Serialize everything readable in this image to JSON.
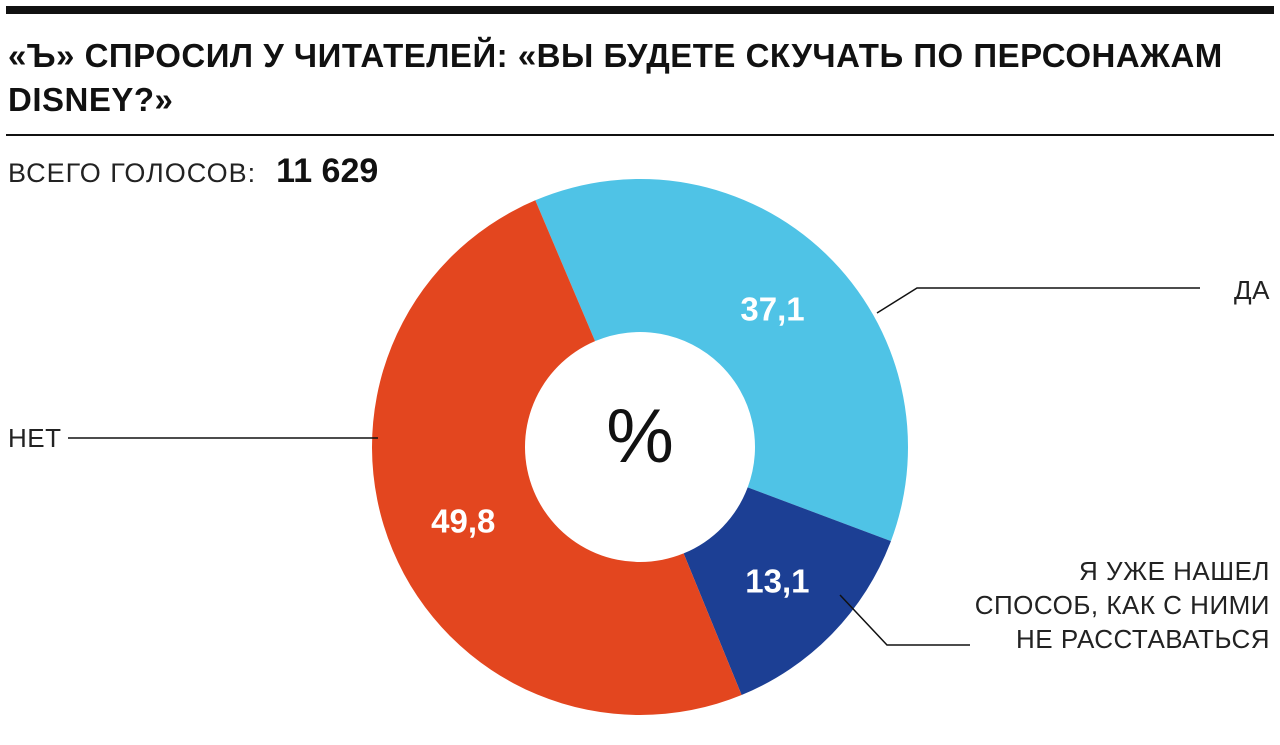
{
  "title": "«Ъ» СПРОСИЛ У ЧИТАТЕЛЕЙ: «ВЫ БУДЕТЕ СКУЧАТЬ ПО ПЕРСОНАЖАМ DISNEY?»",
  "total": {
    "label": "ВСЕГО ГОЛОСОВ:",
    "value": "11 629"
  },
  "chart_data": {
    "type": "pie",
    "style": "donut",
    "center_label": "%",
    "slices": [
      {
        "label": "ДА",
        "value": 37.1,
        "display": "37,1",
        "color": "#4fc3e6"
      },
      {
        "label": "Я УЖЕ НАШЕЛ СПОСОБ, КАК С НИМИ НЕ РАССТАВАТЬСЯ",
        "value": 13.1,
        "display": "13,1",
        "color": "#1c3f94"
      },
      {
        "label": "НЕТ",
        "value": 49.8,
        "display": "49,8",
        "color": "#e3461f"
      }
    ]
  },
  "labels": {
    "yes": "ДА",
    "no": "НЕТ",
    "found": [
      "Я УЖЕ НАШЕЛ",
      "СПОСОБ, КАК С НИМИ",
      "НЕ РАССТАВАТЬСЯ"
    ]
  }
}
